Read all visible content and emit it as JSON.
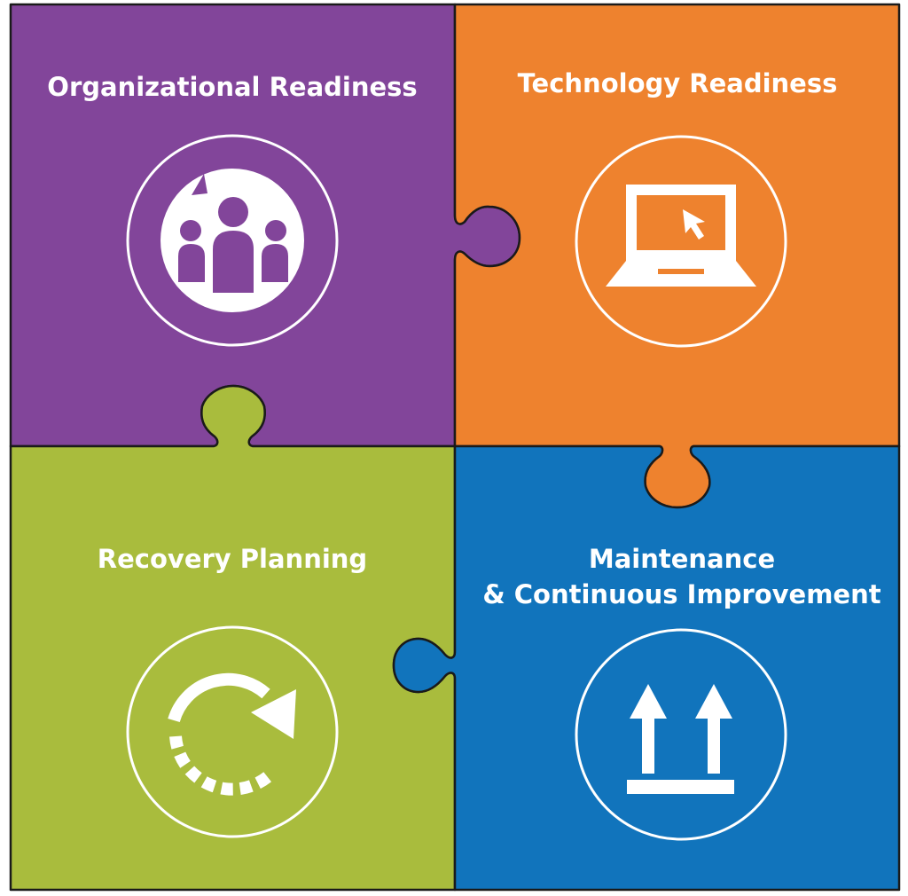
{
  "pieces": [
    {
      "id": "organizational",
      "title": "Organizational Readiness",
      "color": "#82459A",
      "icon": "people-cycle-icon"
    },
    {
      "id": "technology",
      "title": "Technology Readiness",
      "color": "#EE822E",
      "icon": "laptop-icon"
    },
    {
      "id": "recovery",
      "title": "Recovery Planning",
      "color": "#A9BC3D",
      "icon": "recovery-arrow-icon"
    },
    {
      "id": "maintenance",
      "title_line1": "Maintenance",
      "title_line2": "& Continuous Improvement",
      "color": "#1174BC",
      "icon": "upward-arrows-icon"
    }
  ],
  "outline_color": "#1a1a1a",
  "icon_color": "#ffffff"
}
